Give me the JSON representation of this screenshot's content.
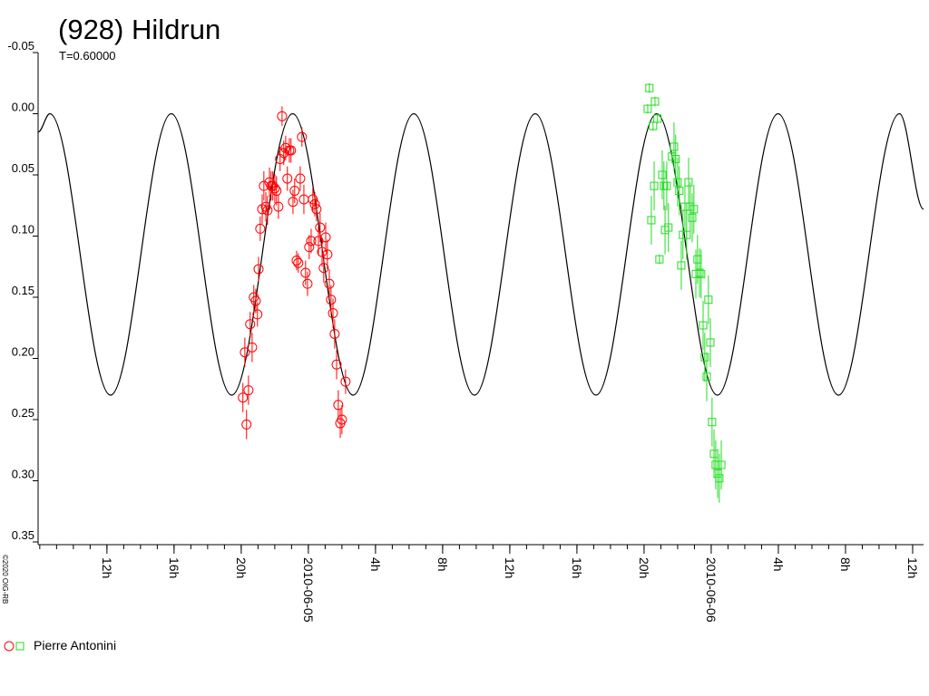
{
  "chart_data": {
    "type": "scatter",
    "title": "(928) Hildrun",
    "subtitle": "T=0.60000",
    "credit": "©2020 OIG-RB",
    "ylim": [
      -0.05,
      0.35
    ],
    "y_inverted": true,
    "yticks": [
      {
        "value": -0.05,
        "label": "-0.05"
      },
      {
        "value": 0,
        "label": "0.00"
      },
      {
        "value": 0.05,
        "label": "0.05"
      },
      {
        "value": 0.1,
        "label": "0.10"
      },
      {
        "value": 0.15,
        "label": "0.15"
      },
      {
        "value": 0.2,
        "label": "0.20"
      },
      {
        "value": 0.25,
        "label": "0.25"
      },
      {
        "value": 0.3,
        "label": "0.30"
      },
      {
        "value": 0.35,
        "label": "0.35"
      }
    ],
    "xlim": [
      "2010-06-04T07:54",
      "2010-06-06T12:39"
    ],
    "xticks": [
      {
        "value": "2010-06-04T12:00",
        "label": "12h"
      },
      {
        "value": "2010-06-04T16:00",
        "label": "16h"
      },
      {
        "value": "2010-06-04T20:00",
        "label": "20h"
      },
      {
        "value": "2010-06-05T00:00",
        "label": "2010-06-05"
      },
      {
        "value": "2010-06-05T04:00",
        "label": "4h"
      },
      {
        "value": "2010-06-05T08:00",
        "label": "8h"
      },
      {
        "value": "2010-06-05T12:00",
        "label": "12h"
      },
      {
        "value": "2010-06-05T16:00",
        "label": "16h"
      },
      {
        "value": "2010-06-05T20:00",
        "label": "20h"
      },
      {
        "value": "2010-06-06T00:00",
        "label": "2010-06-06"
      },
      {
        "value": "2010-06-06T04:00",
        "label": "4h"
      },
      {
        "value": "2010-06-06T08:00",
        "label": "8h"
      },
      {
        "value": "2010-06-06T12:00",
        "label": "12h"
      }
    ],
    "model": {
      "color": "#000000",
      "x": [
        "2010-06-04T07:54",
        "2010-06-04T08:36",
        "2010-06-04T12:13",
        "2010-06-04T15:50",
        "2010-06-04T19:26",
        "2010-06-04T23:04",
        "2010-06-05T02:40",
        "2010-06-05T06:17",
        "2010-06-05T09:54",
        "2010-06-05T13:31",
        "2010-06-05T17:08",
        "2010-06-05T20:45",
        "2010-06-06T00:22",
        "2010-06-06T03:59",
        "2010-06-06T07:35",
        "2010-06-06T11:13",
        "2010-06-06T12:39"
      ],
      "values": [
        0.015,
        0,
        0.23,
        0,
        0.23,
        0,
        0.23,
        0,
        0.23,
        0,
        0.23,
        0,
        0.23,
        0,
        0.23,
        0,
        0.078
      ]
    },
    "series": [
      {
        "name": "Pierre Antonini",
        "sessions": [
          {
            "color": "#ff0000",
            "marker": "circle",
            "x": [
              "2010-06-04T20:06",
              "2010-06-04T20:13",
              "2010-06-04T20:19",
              "2010-06-04T20:26",
              "2010-06-04T20:32",
              "2010-06-04T20:39",
              "2010-06-04T20:45",
              "2010-06-04T20:52",
              "2010-06-04T20:58",
              "2010-06-04T21:02",
              "2010-06-04T21:08",
              "2010-06-04T21:15",
              "2010-06-04T21:21",
              "2010-06-04T21:28",
              "2010-06-04T21:34",
              "2010-06-04T21:41",
              "2010-06-04T21:47",
              "2010-06-04T21:53",
              "2010-06-04T22:00",
              "2010-06-04T22:06",
              "2010-06-04T22:13",
              "2010-06-04T22:19",
              "2010-06-04T22:26",
              "2010-06-04T22:32",
              "2010-06-04T22:39",
              "2010-06-04T22:45",
              "2010-06-04T22:52",
              "2010-06-04T22:58",
              "2010-06-04T23:05",
              "2010-06-04T23:11",
              "2010-06-04T23:18",
              "2010-06-04T23:24",
              "2010-06-04T23:31",
              "2010-06-04T23:37",
              "2010-06-04T23:44",
              "2010-06-04T23:50",
              "2010-06-04T23:57",
              "2010-06-05T00:03",
              "2010-06-05T00:10",
              "2010-06-05T00:16",
              "2010-06-05T00:23",
              "2010-06-05T00:29",
              "2010-06-05T00:36",
              "2010-06-05T00:42",
              "2010-06-05T00:49",
              "2010-06-05T00:55",
              "2010-06-05T01:02",
              "2010-06-05T01:08",
              "2010-06-05T01:15",
              "2010-06-05T01:21",
              "2010-06-05T01:28",
              "2010-06-05T01:34",
              "2010-06-05T01:41",
              "2010-06-05T01:47",
              "2010-06-05T01:54",
              "2010-06-05T02:00",
              "2010-06-05T02:13"
            ],
            "values": [
              0.232,
              0.195,
              0.254,
              0.226,
              0.172,
              0.191,
              0.15,
              0.153,
              0.164,
              0.127,
              0.094,
              0.078,
              0.059,
              0.076,
              0.079,
              0.056,
              0.059,
              0.059,
              0.061,
              0.063,
              0.076,
              0.037,
              0.002,
              0.032,
              0.028,
              0.053,
              0.03,
              0.03,
              0.072,
              0.063,
              0.12,
              0.122,
              0.053,
              0.019,
              0.07,
              0.13,
              0.139,
              0.109,
              0.104,
              0.07,
              0.074,
              0.078,
              0.104,
              0.093,
              0.113,
              0.126,
              0.101,
              0.115,
              0.139,
              0.152,
              0.163,
              0.18,
              0.205,
              0.238,
              0.253,
              0.25,
              0.219
            ],
            "errors": [
              0.012,
              0.012,
              0.012,
              0.012,
              0.01,
              0.012,
              0.01,
              0.01,
              0.01,
              0.01,
              0.01,
              0.012,
              0.012,
              0.012,
              0.012,
              0.012,
              0.012,
              0.012,
              0.012,
              0.012,
              0.01,
              0.01,
              0.008,
              0.01,
              0.01,
              0.01,
              0.01,
              0.01,
              0.01,
              0.01,
              0.008,
              0.008,
              0.01,
              0.008,
              0.012,
              0.01,
              0.01,
              0.01,
              0.01,
              0.01,
              0.01,
              0.01,
              0.012,
              0.012,
              0.012,
              0.012,
              0.012,
              0.012,
              0.012,
              0.012,
              0.012,
              0.012,
              0.012,
              0.012,
              0.012,
              0.012,
              0.01
            ]
          },
          {
            "color": "#22dd22",
            "marker": "square",
            "x": [
              "2010-06-05T20:19",
              "2010-06-05T20:13",
              "2010-06-05T20:32",
              "2010-06-05T20:39",
              "2010-06-05T20:48",
              "2010-06-05T20:26",
              "2010-06-05T20:36",
              "2010-06-05T20:55",
              "2010-06-05T21:05",
              "2010-06-05T21:11",
              "2010-06-05T21:15",
              "2010-06-05T21:21",
              "2010-06-05T21:27",
              "2010-06-05T21:40",
              "2010-06-05T21:47",
              "2010-06-05T21:53",
              "2010-06-05T22:00",
              "2010-06-05T22:06",
              "2010-06-05T22:13",
              "2010-06-05T22:19",
              "2010-06-05T22:26",
              "2010-06-05T22:32",
              "2010-06-05T22:39",
              "2010-06-05T22:45",
              "2010-06-05T22:52",
              "2010-06-05T22:58",
              "2010-06-05T23:05",
              "2010-06-05T23:11",
              "2010-06-05T23:18",
              "2010-06-05T23:24",
              "2010-06-05T23:31",
              "2010-06-05T23:37",
              "2010-06-05T23:44",
              "2010-06-05T23:50",
              "2010-06-05T23:57",
              "2010-06-06T00:03",
              "2010-06-06T00:10",
              "2010-06-06T00:16",
              "2010-06-06T00:23",
              "2010-06-06T00:29",
              "2010-06-06T00:36"
            ],
            "values": [
              -0.021,
              -0.004,
              0.01,
              -0.01,
              0.004,
              0.087,
              0.059,
              0.119,
              0.05,
              0.059,
              0.095,
              0.059,
              0.093,
              0.035,
              0.027,
              0.037,
              0.056,
              0.063,
              0.124,
              0.099,
              0.076,
              0.099,
              0.056,
              0.076,
              0.085,
              0.078,
              0.131,
              0.119,
              0.13,
              0.131,
              0.173,
              0.199,
              0.215,
              0.152,
              0.187,
              0.252,
              0.278,
              0.287,
              0.294,
              0.298,
              0.287
            ],
            "errors": [
              0.004,
              0.004,
              0.004,
              0.004,
              0.004,
              0.02,
              0.02,
              0.004,
              0.02,
              0.02,
              0.02,
              0.02,
              0.02,
              0.004,
              0.02,
              0.02,
              0.02,
              0.02,
              0.02,
              0.02,
              0.02,
              0.02,
              0.02,
              0.02,
              0.02,
              0.02,
              0.02,
              0.02,
              0.02,
              0.02,
              0.02,
              0.02,
              0.02,
              0.02,
              0.02,
              0.02,
              0.02,
              0.02,
              0.02,
              0.02,
              0.02
            ]
          }
        ]
      }
    ]
  }
}
